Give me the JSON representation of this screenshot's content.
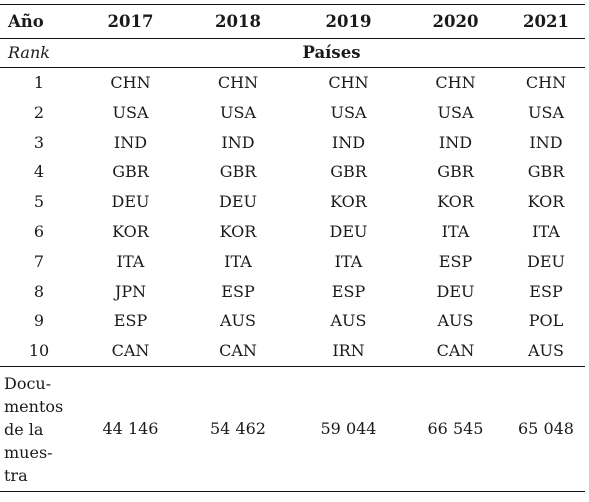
{
  "table": {
    "header": {
      "first_col": "Año",
      "years": [
        "2017",
        "2018",
        "2019",
        "2020",
        "2021"
      ]
    },
    "subheader": {
      "rank_label": "Rank",
      "group_label": "Países"
    },
    "rows": [
      {
        "rank": "1",
        "values": [
          "CHN",
          "CHN",
          "CHN",
          "CHN",
          "CHN"
        ]
      },
      {
        "rank": "2",
        "values": [
          "USA",
          "USA",
          "USA",
          "USA",
          "USA"
        ]
      },
      {
        "rank": "3",
        "values": [
          "IND",
          "IND",
          "IND",
          "IND",
          "IND"
        ]
      },
      {
        "rank": "4",
        "values": [
          "GBR",
          "GBR",
          "GBR",
          "GBR",
          "GBR"
        ]
      },
      {
        "rank": "5",
        "values": [
          "DEU",
          "DEU",
          "KOR",
          "KOR",
          "KOR"
        ]
      },
      {
        "rank": "6",
        "values": [
          "KOR",
          "KOR",
          "DEU",
          "ITA",
          "ITA"
        ]
      },
      {
        "rank": "7",
        "values": [
          "ITA",
          "ITA",
          "ITA",
          "ESP",
          "DEU"
        ]
      },
      {
        "rank": "8",
        "values": [
          "JPN",
          "ESP",
          "ESP",
          "DEU",
          "ESP"
        ]
      },
      {
        "rank": "9",
        "values": [
          "ESP",
          "AUS",
          "AUS",
          "AUS",
          "POL"
        ]
      },
      {
        "rank": "10",
        "values": [
          "CAN",
          "CAN",
          "IRN",
          "CAN",
          "AUS"
        ]
      }
    ],
    "documents": {
      "label_lines": [
        "Docu-",
        "mentos",
        "de la",
        "mues-",
        "tra"
      ],
      "values": [
        "44 146",
        "54 462",
        "59 044",
        "66 545",
        "65 048"
      ]
    }
  }
}
